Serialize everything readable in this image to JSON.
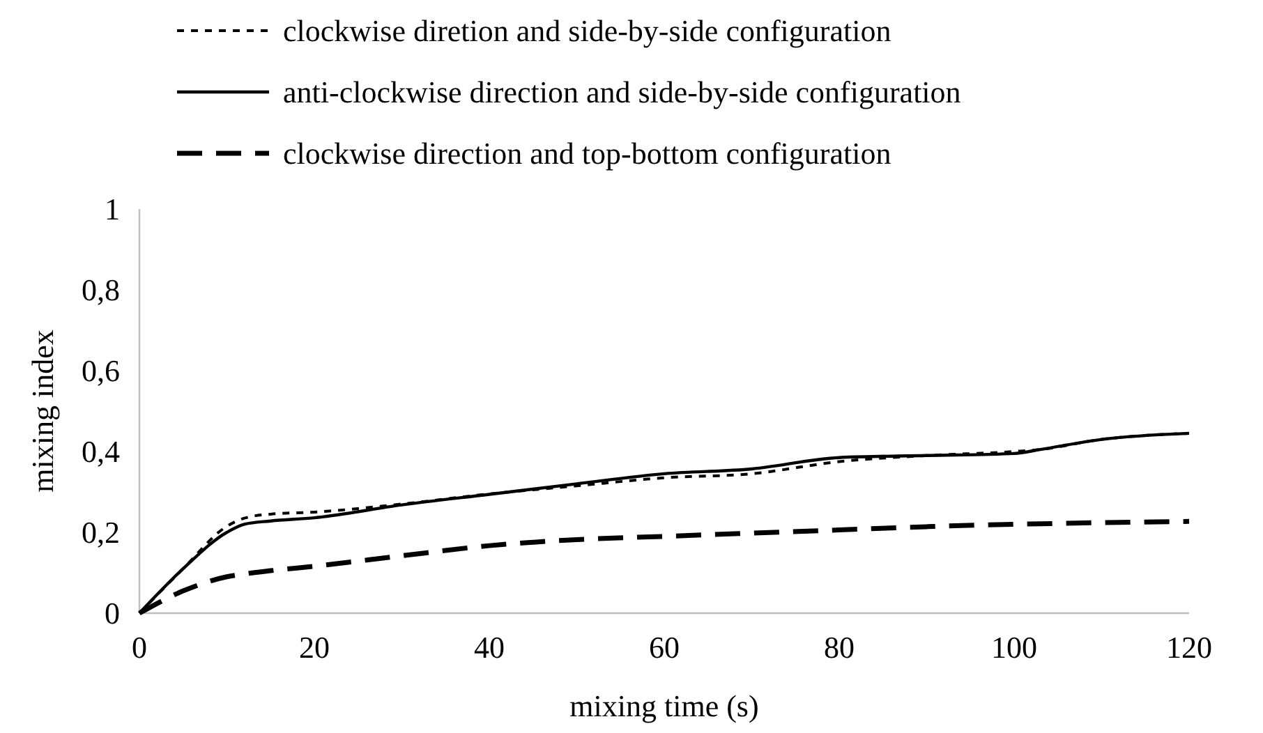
{
  "chart_data": {
    "type": "line",
    "xlabel": "mixing time (s)",
    "ylabel": "mixing index",
    "xlim": [
      0,
      120
    ],
    "xticks": [
      0,
      20,
      40,
      60,
      80,
      100,
      120
    ],
    "ylim": [
      0,
      1
    ],
    "yticks": [
      0,
      {
        "value": 0.2,
        "label": "0,2"
      },
      {
        "value": 0.4,
        "label": "0,4"
      },
      {
        "value": 0.6,
        "label": "0,6"
      },
      {
        "value": 0.8,
        "label": "0,8"
      },
      1
    ],
    "grid": false,
    "legend": "top",
    "x": [
      0,
      5,
      10,
      12,
      15,
      20,
      30,
      40,
      50,
      60,
      70,
      80,
      90,
      100,
      103,
      110,
      120
    ],
    "series": [
      {
        "name": "clockwise diretion and side-by-side configuration",
        "color": "#000000",
        "line_style": "dotted",
        "values": [
          0,
          0.11,
          0.215,
          0.235,
          0.245,
          0.25,
          0.27,
          0.295,
          0.315,
          0.335,
          0.345,
          0.375,
          0.39,
          0.4,
          0.405,
          0.43,
          0.445
        ]
      },
      {
        "name": "anti-clockwise direction and side-by-side configuration",
        "color": "#000000",
        "line_style": "solid",
        "values": [
          0,
          0.11,
          0.2,
          0.22,
          0.228,
          0.236,
          0.268,
          0.294,
          0.32,
          0.345,
          0.357,
          0.385,
          0.39,
          0.395,
          0.405,
          0.43,
          0.445
        ]
      },
      {
        "name": "clockwise direction and top-bottom configuration",
        "color": "#000000",
        "line_style": "dashed",
        "values": [
          0,
          0.055,
          0.09,
          0.097,
          0.105,
          0.116,
          0.142,
          0.167,
          0.182,
          0.19,
          0.198,
          0.206,
          0.214,
          0.22,
          0.221,
          0.224,
          0.227
        ]
      }
    ]
  }
}
